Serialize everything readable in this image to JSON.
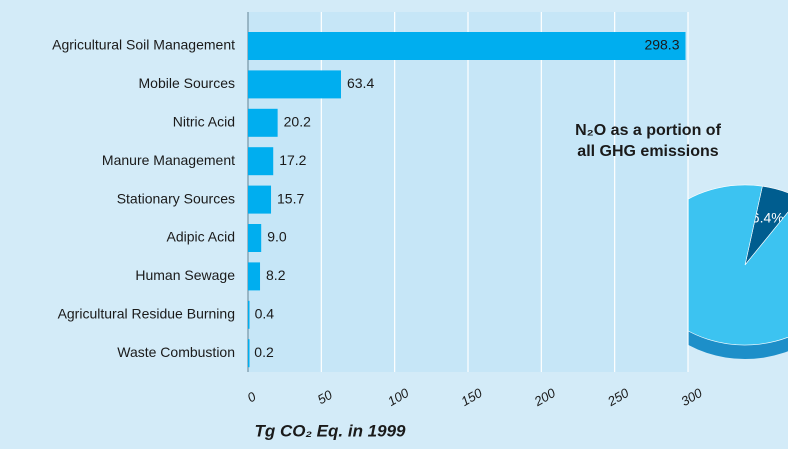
{
  "chart_data": [
    {
      "type": "hbar",
      "categories": [
        "Agricultural Soil Management",
        "Mobile Sources",
        "Nitric Acid",
        "Manure Management",
        "Stationary Sources",
        "Adipic Acid",
        "Human Sewage",
        "Agricultural Residue Burning",
        "Waste Combustion"
      ],
      "values": [
        298.3,
        63.4,
        20.2,
        17.2,
        15.7,
        9.0,
        8.2,
        0.4,
        0.2
      ],
      "value_labels": [
        "298.3",
        "63.4",
        "20.2",
        "17.2",
        "15.7",
        "9.0",
        "8.2",
        "0.4",
        "0.2"
      ],
      "color": "#00aeef",
      "xlabel": "Tg CO₂ Eq. in 1999",
      "xlim": [
        0,
        300
      ],
      "xticks": [
        0,
        50,
        100,
        150,
        200,
        250,
        300
      ],
      "grid": true
    },
    {
      "type": "pie",
      "title": [
        "N₂O as a portion of",
        "all GHG emissions"
      ],
      "values": [
        6.4,
        93.6
      ],
      "value_labels": [
        "6.4%",
        null
      ],
      "colors": [
        "#005d8f",
        "#3cc3f1"
      ]
    }
  ]
}
